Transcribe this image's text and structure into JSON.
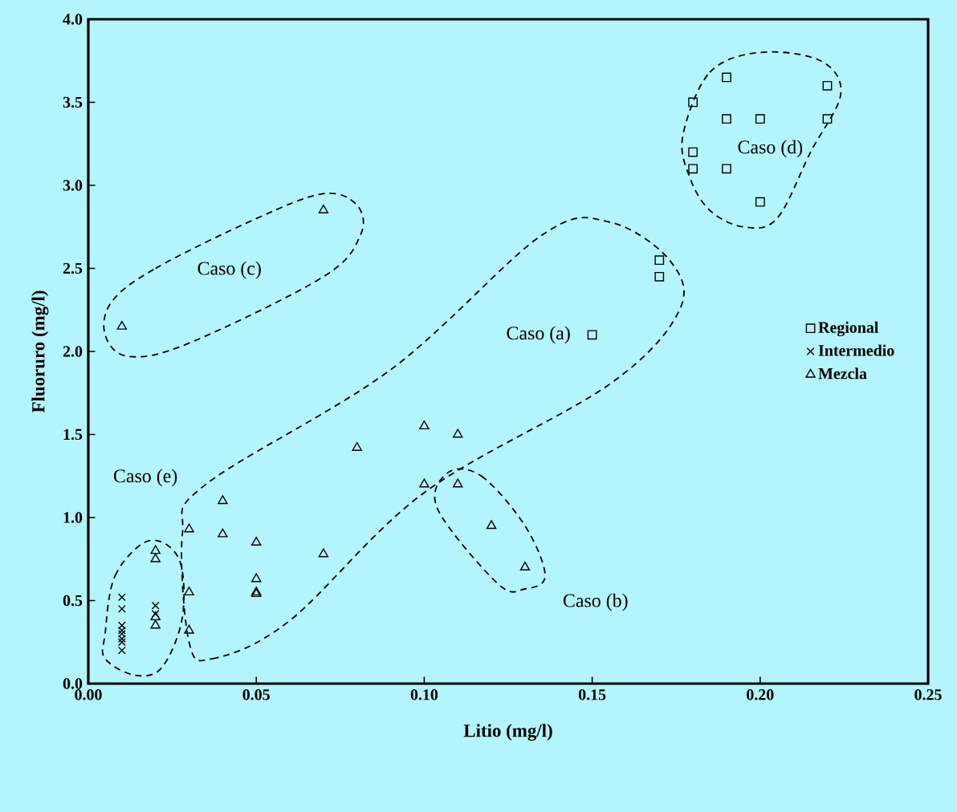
{
  "chart_data": {
    "type": "scatter",
    "xlabel": "Litio (mg/l)",
    "ylabel": "Fluoruro (mg/l)",
    "xlim": [
      0,
      0.25
    ],
    "ylim": [
      0,
      4
    ],
    "xticks": [
      {
        "value": 0,
        "label": "0.00"
      },
      {
        "value": 0.05,
        "label": "0.05"
      },
      {
        "value": 0.1,
        "label": "0.10"
      },
      {
        "value": 0.15,
        "label": "0.15"
      },
      {
        "value": 0.2,
        "label": "0.20"
      },
      {
        "value": 0.25,
        "label": "0.25"
      }
    ],
    "yticks": [
      {
        "value": 0,
        "label": "0.0"
      },
      {
        "value": 0.5,
        "label": "0.5"
      },
      {
        "value": 1,
        "label": "1.0"
      },
      {
        "value": 1.5,
        "label": "1.5"
      },
      {
        "value": 2,
        "label": "2.0"
      },
      {
        "value": 2.5,
        "label": "2.5"
      },
      {
        "value": 3,
        "label": "3.0"
      },
      {
        "value": 3.5,
        "label": "3.5"
      },
      {
        "value": 4,
        "label": "4.0"
      }
    ],
    "legend": "right",
    "grid": false,
    "series": [
      {
        "name": "Regional",
        "color": "#000000",
        "marker": "square",
        "x": [
          0.15,
          0.17,
          0.17,
          0.18,
          0.19,
          0.22,
          0.19,
          0.2,
          0.22,
          0.18,
          0.18,
          0.19,
          0.2
        ],
        "values": [
          2.1,
          2.55,
          2.45,
          3.5,
          3.65,
          3.6,
          3.4,
          3.4,
          3.4,
          3.2,
          3.1,
          3.1,
          2.9
        ]
      },
      {
        "name": "Intermedio",
        "color": "#000000",
        "marker": "cross",
        "x": [
          0.01,
          0.01,
          0.01,
          0.01,
          0.01,
          0.01,
          0.01,
          0.01,
          0.02,
          0.02
        ],
        "values": [
          0.52,
          0.45,
          0.35,
          0.32,
          0.3,
          0.27,
          0.25,
          0.2,
          0.47,
          0.42
        ]
      },
      {
        "name": "Mezcla",
        "color": "#000000",
        "marker": "triangle",
        "x": [
          0.01,
          0.07,
          0.08,
          0.1,
          0.11,
          0.1,
          0.11,
          0.12,
          0.13,
          0.07,
          0.04,
          0.03,
          0.04,
          0.05,
          0.03,
          0.03,
          0.05,
          0.05,
          0.05,
          0.02,
          0.02,
          0.02,
          0.02
        ],
        "values": [
          2.15,
          2.85,
          1.42,
          1.55,
          1.5,
          1.2,
          1.2,
          0.95,
          0.7,
          0.78,
          1.1,
          0.93,
          0.9,
          0.85,
          0.55,
          0.32,
          0.63,
          0.55,
          0.54,
          0.8,
          0.75,
          0.4,
          0.35
        ]
      }
    ],
    "annotations": [
      "Caso (a)",
      "Caso (b)",
      "Caso (c)",
      "Caso (d)",
      "Caso (e)"
    ]
  }
}
